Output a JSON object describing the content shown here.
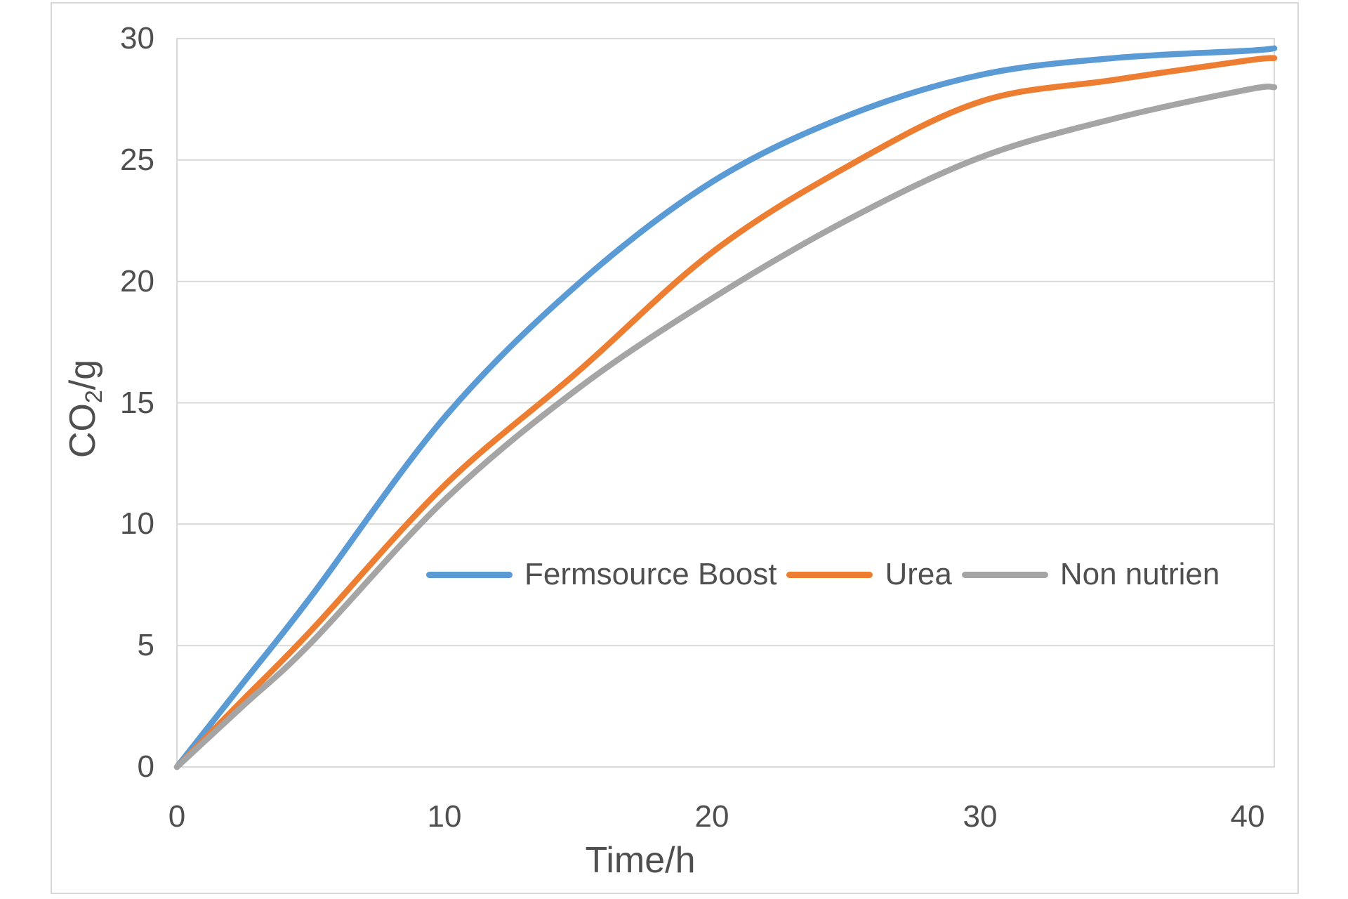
{
  "chart_data": {
    "type": "line",
    "title": "",
    "xlabel": "Time/h",
    "ylabel": "CO2/g",
    "ylabel_parts": {
      "main": "CO",
      "sub": "2",
      "suffix": "/g"
    },
    "xlim": [
      0,
      41
    ],
    "ylim": [
      0,
      30
    ],
    "x_ticks": [
      0,
      10,
      20,
      30,
      40
    ],
    "y_ticks": [
      0,
      5,
      10,
      15,
      20,
      25,
      30
    ],
    "grid": "horizontal",
    "legend_position": "inside-lower-middle",
    "x": [
      0,
      2.5,
      5,
      10,
      15,
      20,
      25,
      30,
      35,
      40,
      41
    ],
    "series": [
      {
        "name": "Fermsource Boost",
        "color": "#5B9BD5",
        "values": [
          0,
          3.5,
          7.0,
          14.4,
          19.9,
          24.1,
          26.8,
          28.5,
          29.2,
          29.5,
          29.6
        ]
      },
      {
        "name": "Urea",
        "color": "#ED7D31",
        "values": [
          0,
          2.8,
          5.6,
          11.6,
          16.3,
          21.2,
          24.7,
          27.4,
          28.3,
          29.1,
          29.2
        ]
      },
      {
        "name": "Non nutrien",
        "color": "#A5A5A5",
        "values": [
          0,
          2.55,
          5.1,
          11.0,
          15.6,
          19.3,
          22.5,
          25.1,
          26.7,
          27.9,
          28.0
        ]
      }
    ]
  },
  "style": {
    "background": "#FFFFFF",
    "grid_color": "#D9D9D9",
    "axis_text_color": "#4F4F4F",
    "frame_border_color": "#D7D7D7",
    "line_width": 8.5
  }
}
